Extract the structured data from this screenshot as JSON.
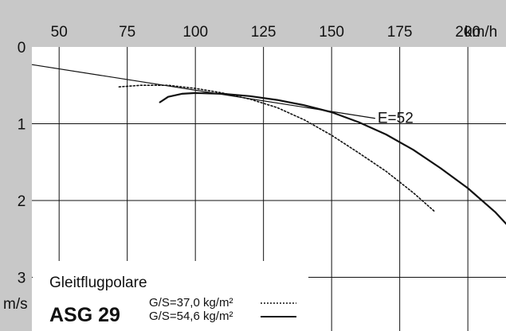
{
  "chart_data": {
    "type": "line",
    "title": "ASG 29",
    "subtitle": "Gleitflugpolare",
    "xlabel": "km/h",
    "ylabel": "m/s",
    "x_ticks": [
      50,
      75,
      100,
      125,
      150,
      175,
      200
    ],
    "y_ticks": [
      0,
      1,
      2,
      3
    ],
    "xlim": [
      40,
      214
    ],
    "ylim": [
      0,
      3.7
    ],
    "y_inverted": true,
    "grid": true,
    "legend_position": "bottom-left",
    "colors": {
      "background": "#c8c8c8",
      "plot_area": "#ffffff",
      "grid": "#000000",
      "series": "#111111"
    },
    "series": [
      {
        "name": "G/S=37,0 kg/m²",
        "style": "dotted",
        "x": [
          72,
          80,
          90,
          100,
          110,
          120,
          130,
          140,
          150,
          160,
          170,
          180,
          188
        ],
        "y": [
          0.52,
          0.5,
          0.5,
          0.54,
          0.6,
          0.68,
          0.79,
          0.95,
          1.15,
          1.38,
          1.62,
          1.9,
          2.15
        ]
      },
      {
        "name": "G/S=54,6 kg/m²",
        "style": "solid",
        "x": [
          87,
          90,
          95,
          100,
          110,
          120,
          130,
          140,
          150,
          160,
          170,
          180,
          190,
          200,
          210,
          215
        ],
        "y": [
          0.72,
          0.65,
          0.61,
          0.6,
          0.61,
          0.64,
          0.69,
          0.76,
          0.85,
          0.98,
          1.14,
          1.34,
          1.58,
          1.84,
          2.15,
          2.34
        ]
      }
    ],
    "annotations": [
      {
        "text": "E=52",
        "type": "tangent_line",
        "x": [
          40,
          166
        ],
        "y": [
          0.23,
          0.93
        ]
      }
    ]
  }
}
